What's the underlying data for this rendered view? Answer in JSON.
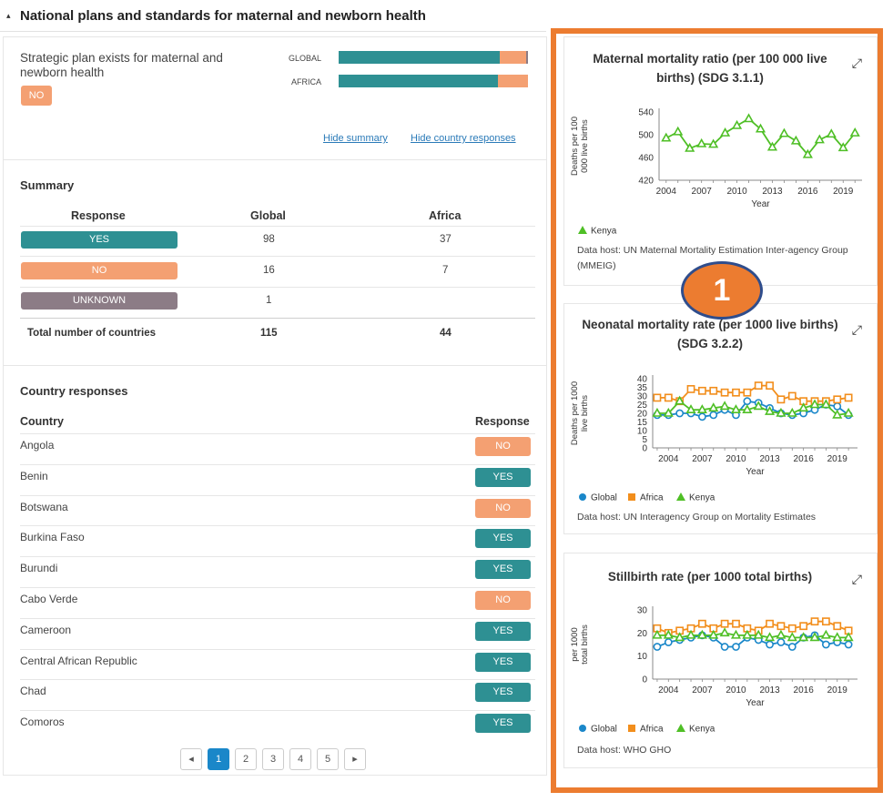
{
  "section": {
    "title": "National plans and standards for maternal and newborn health",
    "caret": "▴"
  },
  "question": {
    "text": "Strategic plan exists for maternal and newborn health",
    "answer": "NO",
    "bars": [
      {
        "label": "GLOBAL",
        "yes": 0.8522,
        "no": 0.1391,
        "unknown": 0.0087
      },
      {
        "label": "AFRICA",
        "yes": 0.8409,
        "no": 0.1591,
        "unknown": 0
      }
    ],
    "links": {
      "hide_summary": "Hide summary",
      "hide_country": "Hide country responses"
    }
  },
  "summary": {
    "title": "Summary",
    "headers": {
      "response": "Response",
      "global": "Global",
      "africa": "Africa"
    },
    "rows": [
      {
        "label": "YES",
        "global": "98",
        "africa": "37"
      },
      {
        "label": "NO",
        "global": "16",
        "africa": "7"
      },
      {
        "label": "UNKNOWN",
        "global": "1",
        "africa": ""
      }
    ],
    "total": {
      "label": "Total number of countries",
      "global": "115",
      "africa": "44"
    }
  },
  "countries": {
    "title": "Country responses",
    "headers": {
      "country": "Country",
      "response": "Response"
    },
    "rows": [
      {
        "name": "Angola",
        "response": "NO"
      },
      {
        "name": "Benin",
        "response": "YES"
      },
      {
        "name": "Botswana",
        "response": "NO"
      },
      {
        "name": "Burkina Faso",
        "response": "YES"
      },
      {
        "name": "Burundi",
        "response": "YES"
      },
      {
        "name": "Cabo Verde",
        "response": "NO"
      },
      {
        "name": "Cameroon",
        "response": "YES"
      },
      {
        "name": "Central African Republic",
        "response": "YES"
      },
      {
        "name": "Chad",
        "response": "YES"
      },
      {
        "name": "Comoros",
        "response": "YES"
      }
    ]
  },
  "pagination": {
    "prev": "◂",
    "pages": [
      "1",
      "2",
      "3",
      "4",
      "5"
    ],
    "active": "1",
    "next": "▸"
  },
  "callout": {
    "label": "1"
  },
  "colors": {
    "teal": "#2e9093",
    "orange": "#f4a072",
    "unknown": "#8c7c86",
    "global_series": "#1a87c9",
    "africa_series": "#f28e1c",
    "kenya_series": "#4fbf26",
    "frame": "#ec7c30"
  },
  "expand_icon": "⤢",
  "chart_data": [
    {
      "type": "line",
      "title": "Maternal mortality ratio (per 100 000 live births) (SDG 3.1.1)",
      "ylabel": "Deaths per 100 000 live births",
      "xlabel": "Year",
      "ylim": [
        420,
        540
      ],
      "yticks": [
        "420",
        "460",
        "500",
        "540"
      ],
      "xticks": [
        "2004",
        "2007",
        "2010",
        "2013",
        "2016",
        "2019"
      ],
      "x": [
        2004,
        2005,
        2006,
        2007,
        2008,
        2009,
        2010,
        2011,
        2012,
        2013,
        2014,
        2015,
        2016,
        2017,
        2018,
        2019,
        2020
      ],
      "series": [
        {
          "name": "Kenya",
          "color": "#4fbf26",
          "marker": "triangle",
          "values": [
            494,
            505,
            476,
            484,
            483,
            503,
            516,
            528,
            510,
            478,
            502,
            489,
            465,
            491,
            501,
            477,
            503
          ]
        }
      ],
      "legend": [
        "Kenya"
      ],
      "source": "Data host: UN Maternal Mortality Estimation Inter-agency Group (MMEIG)"
    },
    {
      "type": "line",
      "title": "Neonatal mortality rate (per 1000 live births) (SDG 3.2.2)",
      "ylabel": "Deaths per 1000 live births",
      "xlabel": "Year",
      "ylim": [
        0,
        40
      ],
      "yticks": [
        "0",
        "5",
        "10",
        "15",
        "20",
        "25",
        "30",
        "35",
        "40"
      ],
      "xticks": [
        "2004",
        "2007",
        "2010",
        "2013",
        "2016",
        "2019"
      ],
      "x": [
        2003,
        2004,
        2005,
        2006,
        2007,
        2008,
        2009,
        2010,
        2011,
        2012,
        2013,
        2014,
        2015,
        2016,
        2017,
        2018,
        2019,
        2020
      ],
      "series": [
        {
          "name": "Global",
          "color": "#1a87c9",
          "marker": "circle",
          "values": [
            19,
            19,
            20,
            20,
            18,
            19,
            22,
            19,
            27,
            26,
            23,
            20,
            19,
            20,
            22,
            25,
            24,
            19
          ]
        },
        {
          "name": "Africa",
          "color": "#f28e1c",
          "marker": "square",
          "values": [
            29,
            29,
            27,
            34,
            33,
            33,
            32,
            32,
            32,
            36,
            36,
            28,
            30,
            27,
            27,
            27,
            28,
            29
          ]
        },
        {
          "name": "Kenya",
          "color": "#4fbf26",
          "marker": "triangle",
          "values": [
            20,
            20,
            27,
            22,
            22,
            23,
            24,
            22,
            22,
            24,
            21,
            20,
            20,
            23,
            25,
            25,
            19,
            20
          ]
        }
      ],
      "legend": [
        "Global",
        "Africa",
        "Kenya"
      ],
      "source": "Data host: UN Interagency Group on Mortality Estimates"
    },
    {
      "type": "line",
      "title": "Stillbirth rate (per 1000 total births)",
      "ylabel": "per 1000 total births",
      "xlabel": "Year",
      "ylim": [
        0,
        30
      ],
      "yticks": [
        "0",
        "10",
        "20",
        "30"
      ],
      "xticks": [
        "2004",
        "2007",
        "2010",
        "2013",
        "2016",
        "2019"
      ],
      "x": [
        2003,
        2004,
        2005,
        2006,
        2007,
        2008,
        2009,
        2010,
        2011,
        2012,
        2013,
        2014,
        2015,
        2016,
        2017,
        2018,
        2019,
        2020
      ],
      "series": [
        {
          "name": "Global",
          "color": "#1a87c9",
          "marker": "circle",
          "values": [
            14,
            16,
            17,
            18,
            19,
            18,
            14,
            14,
            18,
            17,
            15,
            16,
            14,
            18,
            19,
            15,
            16,
            15
          ]
        },
        {
          "name": "Africa",
          "color": "#f28e1c",
          "marker": "square",
          "values": [
            22,
            20,
            21,
            22,
            24,
            22,
            24,
            24,
            22,
            21,
            24,
            23,
            22,
            23,
            25,
            25,
            23,
            21
          ]
        },
        {
          "name": "Kenya",
          "color": "#4fbf26",
          "marker": "triangle",
          "values": [
            19,
            19,
            18,
            19,
            19,
            19,
            20,
            19,
            19,
            19,
            18,
            19,
            18,
            18,
            18,
            19,
            18,
            18
          ]
        }
      ],
      "legend": [
        "Global",
        "Africa",
        "Kenya"
      ],
      "source": "Data host: WHO GHO"
    }
  ]
}
